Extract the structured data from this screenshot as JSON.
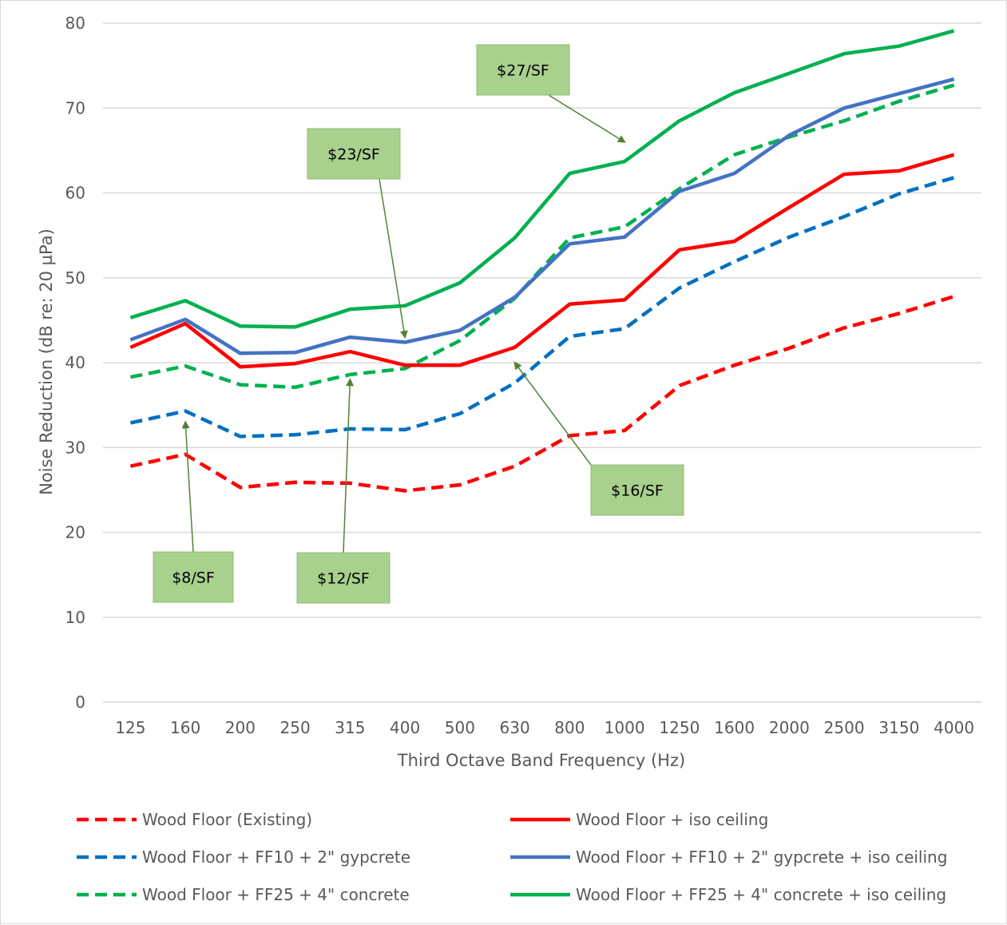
{
  "chart_data": {
    "type": "line",
    "title": "",
    "xlabel": "Third Octave Band Frequency (Hz)",
    "ylabel": "Noise Reduction (dB re: 20 µPa)",
    "ylim": [
      0,
      80
    ],
    "yticks": [
      0,
      10,
      20,
      30,
      40,
      50,
      60,
      70,
      80
    ],
    "grid": "horizontal",
    "legend_position": "bottom",
    "categories": [
      "125",
      "160",
      "200",
      "250",
      "315",
      "400",
      "500",
      "630",
      "800",
      "1000",
      "1250",
      "1600",
      "2000",
      "2500",
      "3150",
      "4000"
    ],
    "series": [
      {
        "name": "Wood Floor (Existing)",
        "color": "#ff0000",
        "style": "dashed",
        "values": [
          27.8,
          29.2,
          25.3,
          25.9,
          25.8,
          24.9,
          25.6,
          27.8,
          31.4,
          32.0,
          37.3,
          39.7,
          41.7,
          44.1,
          45.8,
          47.8
        ]
      },
      {
        "name": "Wood Floor + iso ceiling",
        "color": "#ff0000",
        "style": "solid",
        "values": [
          41.8,
          44.6,
          39.5,
          39.9,
          41.3,
          39.7,
          39.7,
          41.8,
          46.9,
          47.4,
          53.3,
          54.3,
          58.3,
          62.2,
          62.6,
          64.5
        ]
      },
      {
        "name": "Wood Floor + FF10 + 2\" gypcrete",
        "color": "#0070c0",
        "style": "dashed",
        "values": [
          32.9,
          34.3,
          31.3,
          31.5,
          32.2,
          32.1,
          34.0,
          37.6,
          43.1,
          44.0,
          48.8,
          51.9,
          54.8,
          57.2,
          59.9,
          61.8
        ]
      },
      {
        "name": "Wood Floor + FF10 + 2\" gypcrete + iso ceiling",
        "color": "#4472c4",
        "style": "solid",
        "values": [
          42.7,
          45.1,
          41.1,
          41.2,
          43.0,
          42.4,
          43.8,
          47.7,
          54.0,
          54.8,
          60.2,
          62.3,
          66.8,
          70.0,
          71.7,
          73.4
        ]
      },
      {
        "name": "Wood Floor + FF25 + 4\" concrete",
        "color": "#00b050",
        "style": "dashed",
        "values": [
          38.3,
          39.6,
          37.4,
          37.1,
          38.6,
          39.3,
          42.6,
          47.6,
          54.7,
          56.0,
          60.5,
          64.5,
          66.6,
          68.5,
          70.8,
          72.7
        ]
      },
      {
        "name": "Wood Floor + FF25 + 4\" concrete + iso ceiling",
        "color": "#00b050",
        "style": "solid",
        "values": [
          45.3,
          47.3,
          44.3,
          44.2,
          46.3,
          46.7,
          49.4,
          54.7,
          62.3,
          63.7,
          68.5,
          71.8,
          74.1,
          76.4,
          77.3,
          79.1
        ]
      }
    ],
    "annotations": [
      {
        "label": "$8/SF",
        "series": "Wood Floor + FF10 + 2\" gypcrete",
        "x": "160",
        "y": 33
      },
      {
        "label": "$12/SF",
        "series": "Wood Floor + FF25 + 4\" concrete",
        "x": "315",
        "y": 38
      },
      {
        "label": "$16/SF",
        "series": "Wood Floor + iso ceiling",
        "x": "630",
        "y": 40
      },
      {
        "label": "$23/SF",
        "series": "Wood Floor + FF10 + 2\" gypcrete + iso ceiling",
        "x": "400",
        "y": 43
      },
      {
        "label": "$27/SF",
        "series": "Wood Floor + FF25 + 4\" concrete + iso ceiling",
        "x": "1000",
        "y": 66
      }
    ],
    "annotation_box_color": "#a9d18e",
    "annotation_arrow_color": "#548235"
  }
}
